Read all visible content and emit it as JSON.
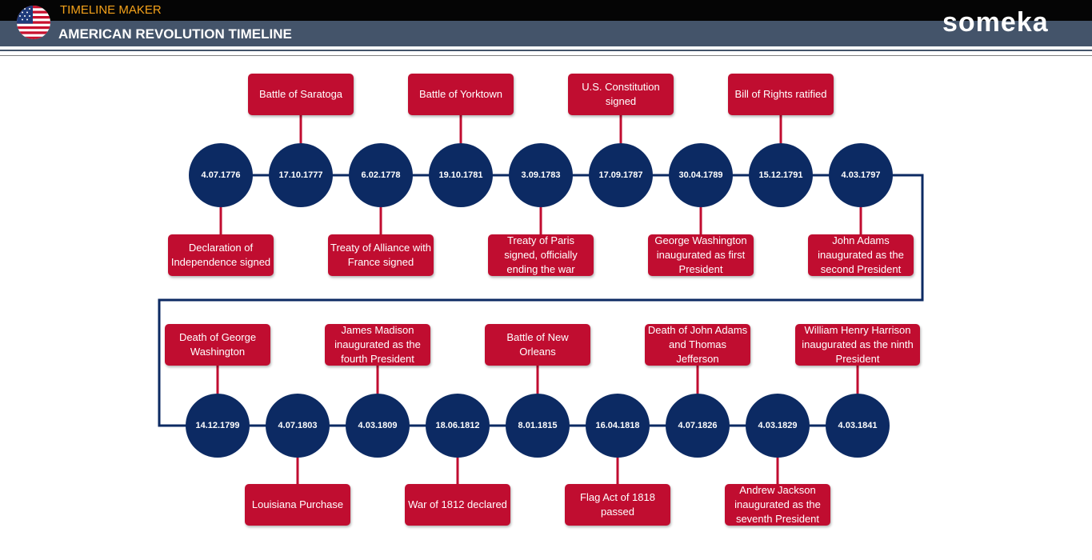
{
  "header": {
    "app_title": "TIMELINE MAKER",
    "page_title": "AMERICAN REVOLUTION TIMELINE",
    "brand": "someka",
    "flag_icon": "us-flag-icon"
  },
  "colors": {
    "node": "#0c2a63",
    "event": "#c00d30",
    "header_dark": "#050505",
    "header_slate": "#44546a",
    "app_title": "#f4a21a"
  },
  "timeline": [
    {
      "date": "4.07.1776",
      "event": "Declaration of Independence signed"
    },
    {
      "date": "17.10.1777",
      "event": "Battle of Saratoga"
    },
    {
      "date": "6.02.1778",
      "event": "Treaty of Alliance with France signed"
    },
    {
      "date": "19.10.1781",
      "event": "Battle of Yorktown"
    },
    {
      "date": "3.09.1783",
      "event": "Treaty of Paris signed, officially ending the war"
    },
    {
      "date": "17.09.1787",
      "event": "U.S. Constitution signed"
    },
    {
      "date": "30.04.1789",
      "event": "George Washington inaugurated as first President"
    },
    {
      "date": "15.12.1791",
      "event": "Bill of Rights ratified"
    },
    {
      "date": "4.03.1797",
      "event": "John Adams inaugurated as the second President"
    },
    {
      "date": "14.12.1799",
      "event": "Death of George Washington"
    },
    {
      "date": "4.07.1803",
      "event": "Louisiana Purchase"
    },
    {
      "date": "4.03.1809",
      "event": "James Madison inaugurated as the fourth President"
    },
    {
      "date": "18.06.1812",
      "event": "War of 1812 declared"
    },
    {
      "date": "8.01.1815",
      "event": "Battle of New Orleans"
    },
    {
      "date": "16.04.1818",
      "event": "Flag Act of 1818 passed"
    },
    {
      "date": "4.07.1826",
      "event": "Death of John Adams and Thomas Jefferson"
    },
    {
      "date": "4.03.1829",
      "event": "Andrew Jackson inaugurated as the seventh President"
    },
    {
      "date": "4.03.1841",
      "event": "William Henry Harrison inaugurated as the ninth President"
    }
  ]
}
